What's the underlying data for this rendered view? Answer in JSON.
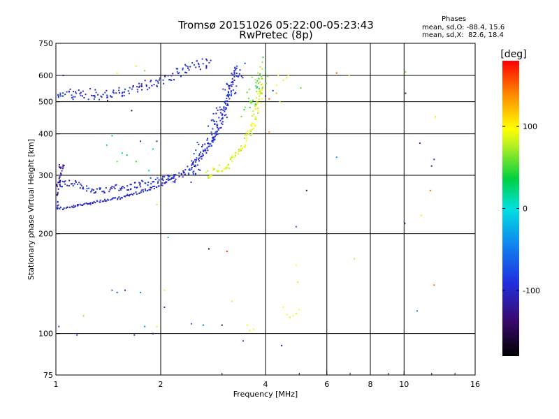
{
  "chart_data": {
    "type": "scatter",
    "title": "Tromsø 20151026 05:22:00-05:23:43",
    "subtitle": "RwPretec (8p)",
    "xlabel": "Frequency [MHz]",
    "ylabel": "Stationary phase Virtual Height [km]",
    "x_scale": "log",
    "y_scale": "log",
    "xlim": [
      1,
      16
    ],
    "ylim": [
      75,
      750
    ],
    "x_ticks": [
      1,
      2,
      4,
      6,
      8,
      10,
      16
    ],
    "x_tick_labels": [
      "1",
      "2",
      "4",
      "6",
      "8",
      "10",
      "16"
    ],
    "y_ticks": [
      75,
      100,
      200,
      300,
      400,
      500,
      600,
      750
    ],
    "y_tick_labels": [
      "75",
      "100",
      "200",
      "300",
      "400",
      "500",
      "600",
      "750"
    ],
    "grid": true,
    "colorbar": {
      "label": "[deg]",
      "range": [
        -180,
        180
      ],
      "ticks": [
        100,
        0,
        -100
      ],
      "tick_labels": [
        "100",
        "0",
        "-100"
      ]
    },
    "phase_stats": {
      "heading": "Phases",
      "line_o": "mean, sd,O: -88.4, 15.6",
      "line_x": "mean, sd,X:  82.6, 18.4"
    },
    "traces": [
      {
        "trace": "o-lower",
        "x": [
          1.0,
          1.05,
          1.1,
          1.2,
          1.3,
          1.4,
          1.5,
          1.6,
          1.7,
          1.8,
          1.9,
          2.0,
          2.1,
          2.2
        ],
        "y": [
          240,
          238,
          240,
          245,
          250,
          252,
          255,
          260,
          265,
          270,
          275,
          280,
          290,
          300
        ],
        "phase": -110,
        "spread": 4
      },
      {
        "trace": "o-band",
        "x": [
          1.0,
          1.1,
          1.2,
          1.3,
          1.4,
          1.5,
          1.6,
          1.7,
          1.8,
          1.9,
          2.0,
          2.1,
          2.2
        ],
        "y": [
          280,
          285,
          275,
          270,
          272,
          275,
          275,
          280,
          285,
          290,
          290,
          295,
          300
        ],
        "phase": -105,
        "spread": 10
      },
      {
        "trace": "o-low-freq",
        "x": [
          1.0,
          1.01,
          1.02,
          1.04,
          1.06
        ],
        "y": [
          235,
          260,
          290,
          320,
          310
        ],
        "phase": -120,
        "spread": 10
      },
      {
        "trace": "o-upper",
        "x": [
          1.0,
          1.2,
          1.4,
          1.6,
          1.8,
          2.0,
          2.1,
          2.2,
          2.4,
          2.6,
          2.8
        ],
        "y": [
          520,
          530,
          520,
          540,
          560,
          580,
          600,
          600,
          630,
          650,
          650
        ],
        "phase": -105,
        "spread": 15
      },
      {
        "trace": "o-F2",
        "x": [
          2.2,
          2.4,
          2.6,
          2.8,
          2.95,
          3.05,
          3.15,
          3.25
        ],
        "y": [
          290,
          310,
          340,
          380,
          420,
          470,
          530,
          620
        ],
        "phase": -110,
        "spread": 10
      },
      {
        "trace": "o-F2-diffuse",
        "x": [
          2.4,
          2.6,
          2.8,
          3.0,
          3.2,
          3.4
        ],
        "y": [
          300,
          350,
          400,
          470,
          560,
          640
        ],
        "phase": -100,
        "spread": 25
      },
      {
        "trace": "x-F2",
        "x": [
          2.7,
          2.9,
          3.1,
          3.3,
          3.5,
          3.7,
          3.8,
          3.9
        ],
        "y": [
          300,
          310,
          320,
          345,
          380,
          430,
          490,
          560
        ],
        "phase": 90,
        "spread": 12
      },
      {
        "trace": "x-F2-upper",
        "x": [
          3.5,
          3.7,
          3.8,
          3.9,
          4.0
        ],
        "y": [
          480,
          520,
          560,
          600,
          650
        ],
        "phase": 60,
        "spread": 30
      }
    ],
    "scatter_points": [
      {
        "x": 1.05,
        "y": 600,
        "phase": -120
      },
      {
        "x": 1.03,
        "y": 530,
        "phase": -90
      },
      {
        "x": 1.1,
        "y": 545,
        "phase": -100
      },
      {
        "x": 1.5,
        "y": 610,
        "phase": 90
      },
      {
        "x": 1.7,
        "y": 640,
        "phase": 110
      },
      {
        "x": 1.8,
        "y": 620,
        "phase": 60
      },
      {
        "x": 1.65,
        "y": 470,
        "phase": -150
      },
      {
        "x": 1.45,
        "y": 395,
        "phase": 30
      },
      {
        "x": 1.4,
        "y": 370,
        "phase": 20
      },
      {
        "x": 1.55,
        "y": 350,
        "phase": 20
      },
      {
        "x": 1.6,
        "y": 345,
        "phase": 40
      },
      {
        "x": 1.7,
        "y": 330,
        "phase": 50
      },
      {
        "x": 1.75,
        "y": 380,
        "phase": -110
      },
      {
        "x": 1.85,
        "y": 310,
        "phase": 20
      },
      {
        "x": 1.9,
        "y": 360,
        "phase": 20
      },
      {
        "x": 1.95,
        "y": 380,
        "phase": -110
      },
      {
        "x": 1.5,
        "y": 330,
        "phase": 60
      },
      {
        "x": 1.95,
        "y": 245,
        "phase": 80
      },
      {
        "x": 2.1,
        "y": 195,
        "phase": 40
      },
      {
        "x": 2.05,
        "y": 135,
        "phase": 90
      },
      {
        "x": 2.05,
        "y": 120,
        "phase": -100
      },
      {
        "x": 1.45,
        "y": 135,
        "phase": -70
      },
      {
        "x": 1.5,
        "y": 133,
        "phase": -80
      },
      {
        "x": 1.58,
        "y": 135,
        "phase": -110
      },
      {
        "x": 1.75,
        "y": 133,
        "phase": -70
      },
      {
        "x": 1.2,
        "y": 113,
        "phase": 70
      },
      {
        "x": 1.02,
        "y": 105,
        "phase": -90
      },
      {
        "x": 1.15,
        "y": 99,
        "phase": -110
      },
      {
        "x": 1.68,
        "y": 99,
        "phase": -110
      },
      {
        "x": 1.8,
        "y": 105,
        "phase": -60
      },
      {
        "x": 1.9,
        "y": 100,
        "phase": -140
      },
      {
        "x": 1.95,
        "y": 105,
        "phase": 90
      },
      {
        "x": 2.45,
        "y": 107,
        "phase": -80
      },
      {
        "x": 2.65,
        "y": 106,
        "phase": -70
      },
      {
        "x": 2.75,
        "y": 180,
        "phase": -150
      },
      {
        "x": 3.0,
        "y": 106,
        "phase": -150
      },
      {
        "x": 3.1,
        "y": 177,
        "phase": 170
      },
      {
        "x": 3.2,
        "y": 125,
        "phase": 90
      },
      {
        "x": 3.55,
        "y": 106,
        "phase": 100
      },
      {
        "x": 3.6,
        "y": 102,
        "phase": 90
      },
      {
        "x": 3.7,
        "y": 103,
        "phase": 100
      },
      {
        "x": 3.45,
        "y": 95,
        "phase": -80
      },
      {
        "x": 4.45,
        "y": 92,
        "phase": -130
      },
      {
        "x": 4.5,
        "y": 120,
        "phase": 100
      },
      {
        "x": 4.6,
        "y": 114,
        "phase": 100
      },
      {
        "x": 4.7,
        "y": 112,
        "phase": 90
      },
      {
        "x": 4.8,
        "y": 113,
        "phase": 100
      },
      {
        "x": 4.9,
        "y": 115,
        "phase": 90
      },
      {
        "x": 5.0,
        "y": 118,
        "phase": 100
      },
      {
        "x": 4.9,
        "y": 161,
        "phase": 100
      },
      {
        "x": 4.95,
        "y": 143,
        "phase": 110
      },
      {
        "x": 4.9,
        "y": 210,
        "phase": -80
      },
      {
        "x": 5.25,
        "y": 270,
        "phase": -150
      },
      {
        "x": 6.4,
        "y": 340,
        "phase": -50
      },
      {
        "x": 6.4,
        "y": 610,
        "phase": 160
      },
      {
        "x": 6.95,
        "y": 600,
        "phase": 110
      },
      {
        "x": 7.2,
        "y": 168,
        "phase": 80
      },
      {
        "x": 10.05,
        "y": 215,
        "phase": -130
      },
      {
        "x": 10.1,
        "y": 530,
        "phase": -140
      },
      {
        "x": 10.1,
        "y": 615,
        "phase": 60
      },
      {
        "x": 11.1,
        "y": 375,
        "phase": -100
      },
      {
        "x": 11.2,
        "y": 227,
        "phase": 90
      },
      {
        "x": 10.9,
        "y": 117,
        "phase": -60
      },
      {
        "x": 11.9,
        "y": 270,
        "phase": 150
      },
      {
        "x": 12.2,
        "y": 335,
        "phase": -110
      },
      {
        "x": 12.0,
        "y": 320,
        "phase": -120
      },
      {
        "x": 12.3,
        "y": 450,
        "phase": 110
      },
      {
        "x": 12.2,
        "y": 140,
        "phase": 150
      },
      {
        "x": 4.0,
        "y": 520,
        "phase": -120
      },
      {
        "x": 4.1,
        "y": 510,
        "phase": 160
      },
      {
        "x": 4.2,
        "y": 540,
        "phase": -100
      },
      {
        "x": 4.3,
        "y": 560,
        "phase": 100
      },
      {
        "x": 4.35,
        "y": 600,
        "phase": 100
      },
      {
        "x": 4.5,
        "y": 580,
        "phase": 90
      },
      {
        "x": 4.6,
        "y": 590,
        "phase": 80
      },
      {
        "x": 4.65,
        "y": 600,
        "phase": 110
      },
      {
        "x": 4.1,
        "y": 405,
        "phase": 140
      },
      {
        "x": 4.4,
        "y": 500,
        "phase": 110
      },
      {
        "x": 4.3,
        "y": 530,
        "phase": 130
      },
      {
        "x": 5.05,
        "y": 550,
        "phase": 60
      }
    ]
  }
}
